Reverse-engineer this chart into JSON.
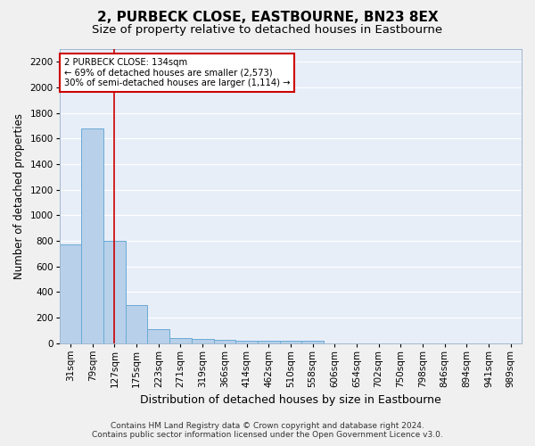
{
  "title": "2, PURBECK CLOSE, EASTBOURNE, BN23 8EX",
  "subtitle": "Size of property relative to detached houses in Eastbourne",
  "xlabel": "Distribution of detached houses by size in Eastbourne",
  "ylabel": "Number of detached properties",
  "categories": [
    "31sqm",
    "79sqm",
    "127sqm",
    "175sqm",
    "223sqm",
    "271sqm",
    "319sqm",
    "366sqm",
    "414sqm",
    "462sqm",
    "510sqm",
    "558sqm",
    "606sqm",
    "654sqm",
    "702sqm",
    "750sqm",
    "798sqm",
    "846sqm",
    "894sqm",
    "941sqm",
    "989sqm"
  ],
  "values": [
    770,
    1680,
    800,
    300,
    110,
    40,
    30,
    25,
    20,
    20,
    20,
    20,
    0,
    0,
    0,
    0,
    0,
    0,
    0,
    0,
    0
  ],
  "bar_color": "#b8d0ea",
  "bar_edge_color": "#6aaad4",
  "marker_index": 2,
  "marker_label": "2 PURBECK CLOSE: 134sqm",
  "annotation_line1": "← 69% of detached houses are smaller (2,573)",
  "annotation_line2": "30% of semi-detached houses are larger (1,114) →",
  "annotation_box_color": "#ffffff",
  "annotation_box_edge": "#cc0000",
  "vline_color": "#cc0000",
  "ylim": [
    0,
    2300
  ],
  "yticks": [
    0,
    200,
    400,
    600,
    800,
    1000,
    1200,
    1400,
    1600,
    1800,
    2000,
    2200
  ],
  "background_color": "#e8eef8",
  "grid_color": "#ffffff",
  "footer_line1": "Contains HM Land Registry data © Crown copyright and database right 2024.",
  "footer_line2": "Contains public sector information licensed under the Open Government Licence v3.0.",
  "title_fontsize": 11,
  "subtitle_fontsize": 9.5,
  "xlabel_fontsize": 9,
  "ylabel_fontsize": 8.5,
  "tick_fontsize": 7.5,
  "footer_fontsize": 6.5
}
